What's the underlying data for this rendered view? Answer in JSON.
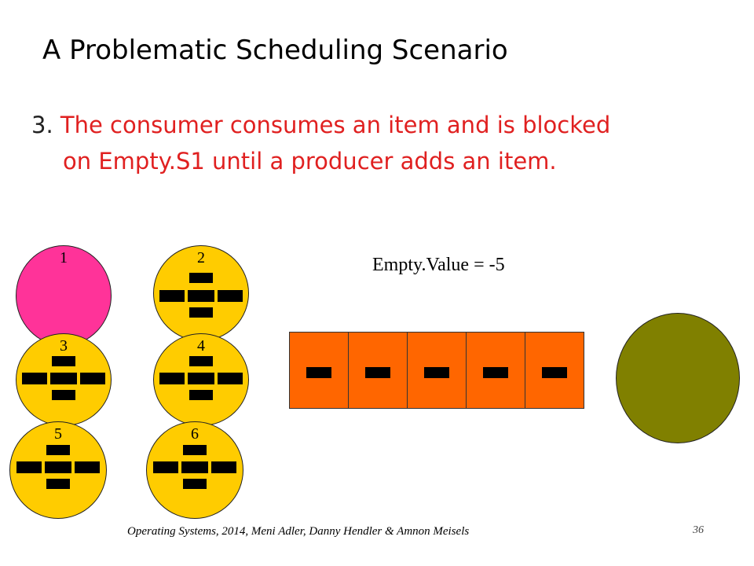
{
  "title": "A Problematic Scheduling Scenario",
  "bullet": {
    "number": "3.",
    "line1": "The consumer consumes an item and is blocked",
    "line2": "on Empty.S1 until a producer adds an item."
  },
  "processes": [
    {
      "label": "1",
      "color": "#ff3399",
      "role": "consumer"
    },
    {
      "label": "2",
      "color": "#ffcc00",
      "role": "producer"
    },
    {
      "label": "3",
      "color": "#ffcc00",
      "role": "producer"
    },
    {
      "label": "4",
      "color": "#ffcc00",
      "role": "producer"
    },
    {
      "label": "5",
      "color": "#ffcc00",
      "role": "producer"
    },
    {
      "label": "6",
      "color": "#ffcc00",
      "role": "producer"
    }
  ],
  "semaphore": {
    "label": "Empty.Value = -5",
    "queue_length": 5,
    "queue_color": "#ff6600",
    "idle_circle_color": "#808000"
  },
  "footer": "Operating Systems, 2014, Meni Adler, Danny Hendler & Amnon Meisels",
  "page_number": "36"
}
